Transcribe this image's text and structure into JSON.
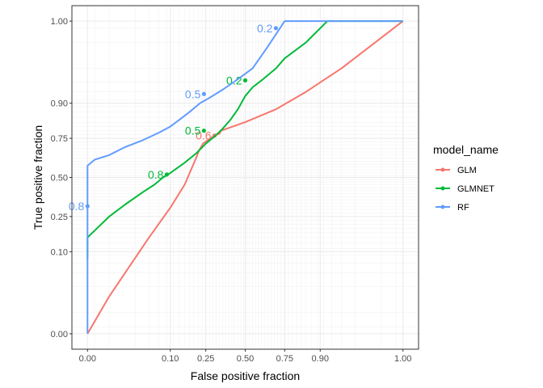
{
  "chart_data": {
    "type": "line",
    "title": "",
    "xlabel": "False positive fraction",
    "ylabel": "True positive fraction",
    "xlim": [
      0,
      1
    ],
    "ylim": [
      0,
      1
    ],
    "x_scale": "probit",
    "y_scale": "probit",
    "grid": true,
    "x_ticks": [
      0.0,
      0.1,
      0.25,
      0.5,
      0.75,
      0.9,
      1.0
    ],
    "x_tick_labels": [
      "0.00",
      "0.10",
      "0.25",
      "0.50",
      "0.75",
      "0.90",
      "1.00"
    ],
    "y_ticks": [
      0.0,
      0.1,
      0.25,
      0.5,
      0.75,
      0.9,
      1.0
    ],
    "y_tick_labels": [
      "0.00",
      "0.10",
      "0.25",
      "0.50",
      "0.75",
      "0.90",
      "1.00"
    ],
    "legend": {
      "title": "model_name",
      "position": "right"
    },
    "series": [
      {
        "name": "GLM",
        "color": "#F8766D",
        "points": [
          [
            0.0,
            0.0
          ],
          [
            0.01,
            0.02
          ],
          [
            0.05,
            0.15
          ],
          [
            0.1,
            0.3
          ],
          [
            0.15,
            0.45
          ],
          [
            0.2,
            0.63
          ],
          [
            0.215,
            0.68
          ],
          [
            0.235,
            0.72
          ],
          [
            0.26,
            0.74
          ],
          [
            0.3,
            0.765
          ],
          [
            0.33,
            0.775
          ],
          [
            0.34,
            0.79
          ],
          [
            0.5,
            0.83
          ],
          [
            0.7,
            0.88
          ],
          [
            0.85,
            0.93
          ],
          [
            0.95,
            0.97
          ],
          [
            1.0,
            1.0
          ]
        ],
        "cutoffs": [
          {
            "label": "0.6",
            "fpr": 0.3,
            "tpr": 0.765
          }
        ]
      },
      {
        "name": "GLMNET",
        "color": "#00BA38",
        "points": [
          [
            0.0,
            0.08
          ],
          [
            0.002,
            0.15
          ],
          [
            0.01,
            0.25
          ],
          [
            0.02,
            0.32
          ],
          [
            0.04,
            0.4
          ],
          [
            0.06,
            0.45
          ],
          [
            0.08,
            0.5
          ],
          [
            0.1,
            0.53
          ],
          [
            0.15,
            0.6
          ],
          [
            0.2,
            0.66
          ],
          [
            0.25,
            0.72
          ],
          [
            0.3,
            0.76
          ],
          [
            0.35,
            0.8
          ],
          [
            0.4,
            0.84
          ],
          [
            0.45,
            0.88
          ],
          [
            0.5,
            0.92
          ],
          [
            0.55,
            0.94
          ],
          [
            0.62,
            0.955
          ],
          [
            0.7,
            0.97
          ],
          [
            0.75,
            0.98
          ],
          [
            0.85,
            0.99
          ],
          [
            0.92,
            0.998
          ],
          [
            1.0,
            1.0
          ]
        ],
        "cutoffs": [
          {
            "label": "0.8",
            "fpr": 0.09,
            "tpr": 0.52
          },
          {
            "label": "0.5",
            "fpr": 0.24,
            "tpr": 0.79
          },
          {
            "label": "0.2",
            "fpr": 0.5,
            "tpr": 0.953
          }
        ]
      },
      {
        "name": "RF",
        "color": "#619CFF",
        "points": [
          [
            0.0,
            0.0
          ],
          [
            0.0,
            0.58
          ],
          [
            0.005,
            0.62
          ],
          [
            0.01,
            0.65
          ],
          [
            0.02,
            0.7
          ],
          [
            0.04,
            0.74
          ],
          [
            0.07,
            0.78
          ],
          [
            0.1,
            0.81
          ],
          [
            0.13,
            0.84
          ],
          [
            0.17,
            0.87
          ],
          [
            0.22,
            0.9
          ],
          [
            0.27,
            0.915
          ],
          [
            0.35,
            0.935
          ],
          [
            0.45,
            0.955
          ],
          [
            0.55,
            0.97
          ],
          [
            0.65,
            0.988
          ],
          [
            0.75,
            0.998
          ],
          [
            0.85,
            1.0
          ],
          [
            1.0,
            1.0
          ]
        ],
        "cutoffs": [
          {
            "label": "0.8",
            "fpr": 0.0,
            "tpr": 0.31
          },
          {
            "label": "0.5",
            "fpr": 0.24,
            "tpr": 0.925
          },
          {
            "label": "0.2",
            "fpr": 0.7,
            "tpr": 0.995
          }
        ]
      }
    ]
  }
}
